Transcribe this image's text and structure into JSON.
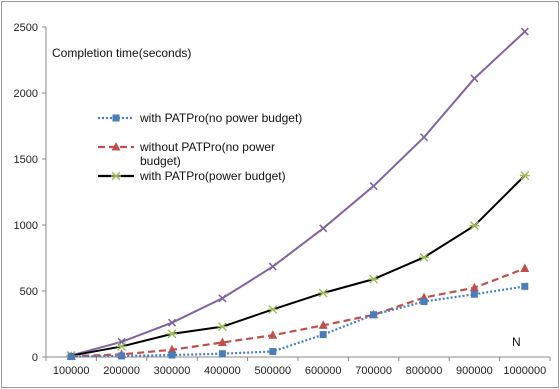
{
  "chart_data": {
    "type": "line",
    "title": "",
    "xlabel": "",
    "ylabel": "",
    "y_annotation": "Completion time(seconds)",
    "x_annotation": "N",
    "ylim": [
      0,
      2500
    ],
    "grid": false,
    "legend_position": "center-left",
    "categories": [
      "100000",
      "200000",
      "300000",
      "400000",
      "500000",
      "600000",
      "700000",
      "800000",
      "900000",
      "1000000"
    ],
    "y_ticks": [
      "0",
      "500",
      "1000",
      "1500",
      "2000",
      "2500"
    ],
    "series": [
      {
        "name": "with PATPro(no power budget)",
        "values": [
          3,
          8,
          15,
          25,
          42,
          170,
          320,
          420,
          475,
          535
        ],
        "color": "#4a7ebb",
        "line_style": "dotted",
        "marker": "square",
        "in_legend": true
      },
      {
        "name": "without PATPro(no power budget)",
        "values": [
          5,
          20,
          55,
          110,
          165,
          240,
          320,
          450,
          525,
          670
        ],
        "color": "#c0504d",
        "line_style": "dashed",
        "marker": "triangle",
        "in_legend": true
      },
      {
        "name": "with PATPro(power budget)",
        "values": [
          10,
          80,
          175,
          230,
          360,
          485,
          590,
          755,
          995,
          1375
        ],
        "color": "#000000",
        "line_style": "solid",
        "marker": "star",
        "in_legend": true
      },
      {
        "name": "",
        "values": [
          12,
          115,
          260,
          445,
          685,
          975,
          1295,
          1665,
          2110,
          2465
        ],
        "color": "#8064a2",
        "line_style": "solid",
        "marker": "x",
        "in_legend": false
      }
    ],
    "legend_lines": [
      [
        "with PATPro(no power budget)"
      ],
      [
        "without PATPro(no power",
        "budget)"
      ],
      [
        "with PATPro(power budget)"
      ]
    ]
  }
}
